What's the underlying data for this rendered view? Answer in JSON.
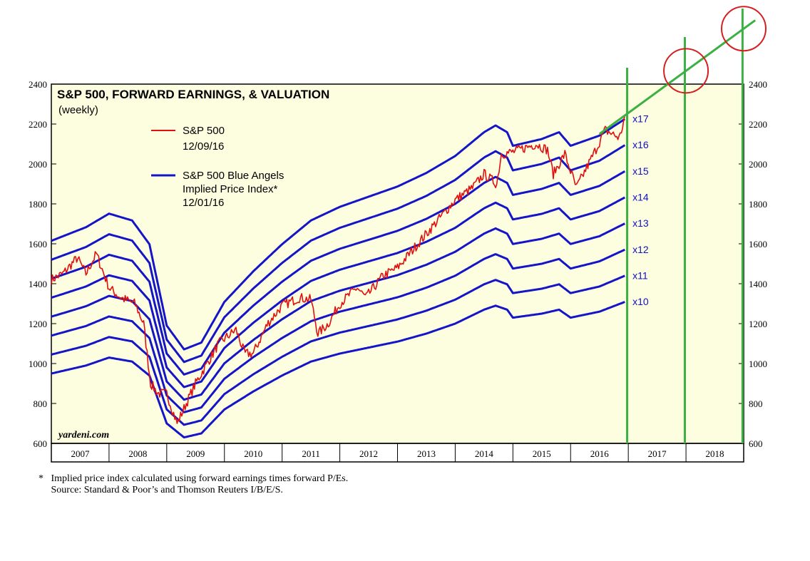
{
  "chart_data": {
    "type": "line",
    "title": "S&P 500, FORWARD EARNINGS, & VALUATION",
    "subtitle": "(weekly)",
    "watermark": "yardeni.com",
    "ylim": [
      600,
      2400
    ],
    "xlim": [
      2007,
      2019
    ],
    "y_ticks": [
      "600",
      "800",
      "1000",
      "1200",
      "1400",
      "1600",
      "1800",
      "2000",
      "2200",
      "2400"
    ],
    "x_tick_labels": [
      "2007",
      "2008",
      "2009",
      "2010",
      "2011",
      "2012",
      "2013",
      "2014",
      "2015",
      "2016",
      "2017",
      "2018"
    ],
    "legend": [
      {
        "label": "S&P 500",
        "date": "12/09/16",
        "color": "#e01010"
      },
      {
        "label": "S&P 500 Blue Angels",
        "label2": "Implied Price Index*",
        "date": "12/01/16",
        "color": "#1515c8"
      }
    ],
    "multiples": [
      "x10",
      "x11",
      "x12",
      "x13",
      "x14",
      "x15",
      "x16",
      "x17"
    ],
    "forward_earnings_keypoints": {
      "x": [
        2007.0,
        2007.6,
        2008.0,
        2008.4,
        2008.7,
        2009.0,
        2009.3,
        2009.6,
        2010.0,
        2010.5,
        2011.0,
        2011.5,
        2012.0,
        2012.5,
        2013.0,
        2013.5,
        2014.0,
        2014.5,
        2014.7,
        2014.9,
        2015.0,
        2015.5,
        2015.8,
        2016.0,
        2016.5,
        2016.95
      ],
      "values": [
        95,
        99,
        103,
        101,
        94,
        70,
        63,
        65,
        77,
        86,
        94,
        101,
        105,
        108,
        111,
        115,
        120,
        127,
        129,
        127,
        123,
        125,
        127,
        123,
        126,
        131
      ]
    },
    "sp500_keypoints": {
      "x": [
        2007.0,
        2007.2,
        2007.45,
        2007.6,
        2007.78,
        2008.0,
        2008.2,
        2008.45,
        2008.6,
        2008.72,
        2008.85,
        2009.0,
        2009.18,
        2009.5,
        2009.9,
        2010.2,
        2010.35,
        2010.5,
        2010.75,
        2011.0,
        2011.3,
        2011.5,
        2011.62,
        2011.8,
        2012.0,
        2012.3,
        2012.45,
        2012.75,
        2013.0,
        2013.5,
        2014.0,
        2014.3,
        2014.5,
        2014.72,
        2014.8,
        2015.0,
        2015.4,
        2015.6,
        2015.7,
        2015.9,
        2016.1,
        2016.4,
        2016.6,
        2016.85,
        2016.95
      ],
      "values": [
        1420,
        1450,
        1530,
        1450,
        1550,
        1380,
        1330,
        1300,
        1200,
        900,
        850,
        850,
        700,
        900,
        1100,
        1170,
        1050,
        1050,
        1200,
        1290,
        1330,
        1320,
        1150,
        1200,
        1300,
        1380,
        1330,
        1440,
        1480,
        1650,
        1820,
        1880,
        1950,
        1900,
        2050,
        2060,
        2100,
        2070,
        1950,
        2050,
        1880,
        2050,
        2170,
        2130,
        2250
      ]
    },
    "green_trend": {
      "x": [
        2016.5,
        2019.2
      ],
      "values": [
        2150,
        2720
      ]
    },
    "green_verticals": [
      2016.98,
      2017.98,
      2018.98
    ],
    "circles_on_trend": [
      2018.0,
      2019.0
    ]
  },
  "labels": {
    "footnote_line1": "*   Implied price index calculated using forward earnings times forward P/Es.",
    "footnote_line2": "     Source: Standard & Poor’s and Thomson Reuters I/B/E/S."
  }
}
